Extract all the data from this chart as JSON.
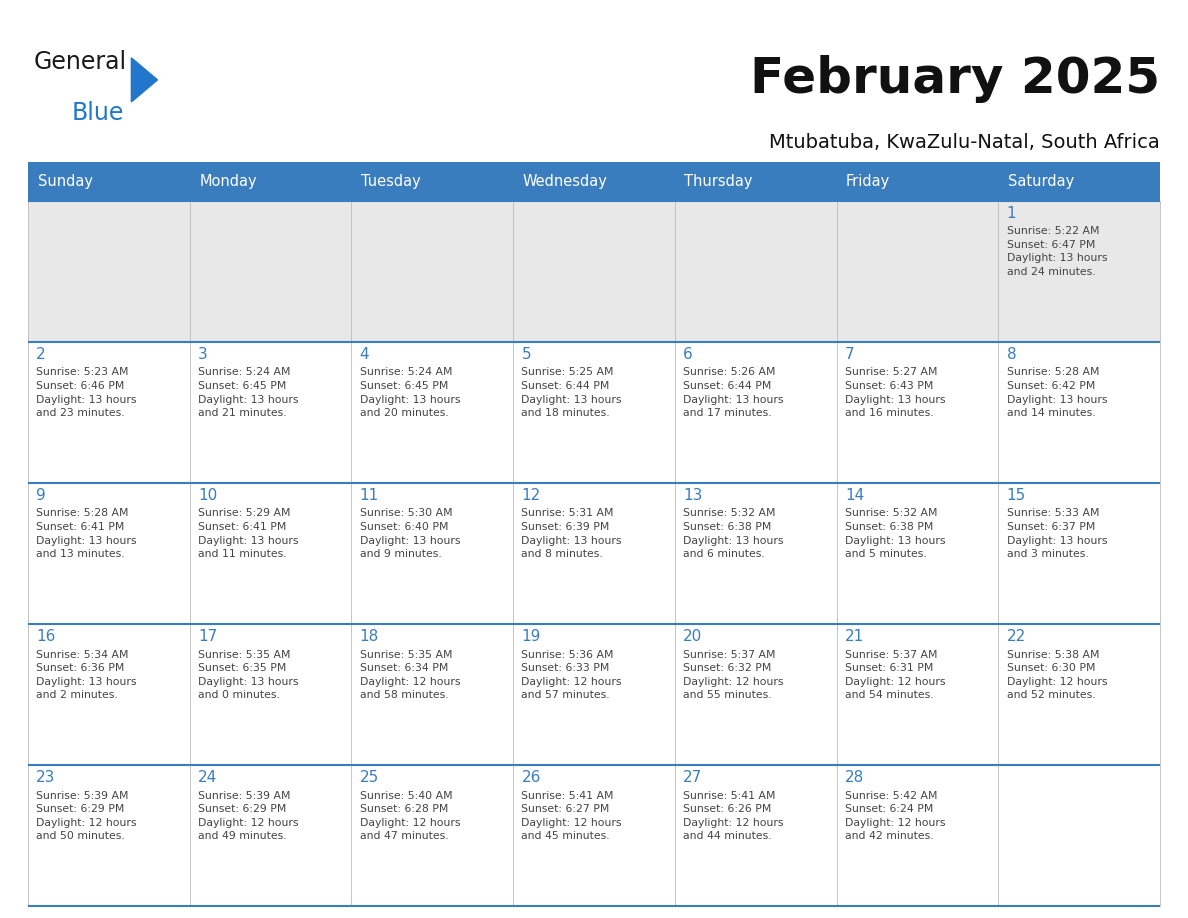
{
  "title": "February 2025",
  "subtitle": "Mtubatuba, KwaZulu-Natal, South Africa",
  "days_of_week": [
    "Sunday",
    "Monday",
    "Tuesday",
    "Wednesday",
    "Thursday",
    "Friday",
    "Saturday"
  ],
  "header_bg": "#3a7dbf",
  "header_text": "#ffffff",
  "row1_bg": "#e8e8e8",
  "cell_bg": "#ffffff",
  "border_color": "#3a7dbf",
  "sep_color": "#bbbbbb",
  "text_color": "#444444",
  "date_color": "#3a7dbf",
  "logo_general_color": "#1a1a1a",
  "logo_blue_color": "#2277cc",
  "logo_triangle_color": "#2277cc",
  "weeks": [
    [
      {
        "day": "",
        "info": ""
      },
      {
        "day": "",
        "info": ""
      },
      {
        "day": "",
        "info": ""
      },
      {
        "day": "",
        "info": ""
      },
      {
        "day": "",
        "info": ""
      },
      {
        "day": "",
        "info": ""
      },
      {
        "day": "1",
        "info": "Sunrise: 5:22 AM\nSunset: 6:47 PM\nDaylight: 13 hours\nand 24 minutes."
      }
    ],
    [
      {
        "day": "2",
        "info": "Sunrise: 5:23 AM\nSunset: 6:46 PM\nDaylight: 13 hours\nand 23 minutes."
      },
      {
        "day": "3",
        "info": "Sunrise: 5:24 AM\nSunset: 6:45 PM\nDaylight: 13 hours\nand 21 minutes."
      },
      {
        "day": "4",
        "info": "Sunrise: 5:24 AM\nSunset: 6:45 PM\nDaylight: 13 hours\nand 20 minutes."
      },
      {
        "day": "5",
        "info": "Sunrise: 5:25 AM\nSunset: 6:44 PM\nDaylight: 13 hours\nand 18 minutes."
      },
      {
        "day": "6",
        "info": "Sunrise: 5:26 AM\nSunset: 6:44 PM\nDaylight: 13 hours\nand 17 minutes."
      },
      {
        "day": "7",
        "info": "Sunrise: 5:27 AM\nSunset: 6:43 PM\nDaylight: 13 hours\nand 16 minutes."
      },
      {
        "day": "8",
        "info": "Sunrise: 5:28 AM\nSunset: 6:42 PM\nDaylight: 13 hours\nand 14 minutes."
      }
    ],
    [
      {
        "day": "9",
        "info": "Sunrise: 5:28 AM\nSunset: 6:41 PM\nDaylight: 13 hours\nand 13 minutes."
      },
      {
        "day": "10",
        "info": "Sunrise: 5:29 AM\nSunset: 6:41 PM\nDaylight: 13 hours\nand 11 minutes."
      },
      {
        "day": "11",
        "info": "Sunrise: 5:30 AM\nSunset: 6:40 PM\nDaylight: 13 hours\nand 9 minutes."
      },
      {
        "day": "12",
        "info": "Sunrise: 5:31 AM\nSunset: 6:39 PM\nDaylight: 13 hours\nand 8 minutes."
      },
      {
        "day": "13",
        "info": "Sunrise: 5:32 AM\nSunset: 6:38 PM\nDaylight: 13 hours\nand 6 minutes."
      },
      {
        "day": "14",
        "info": "Sunrise: 5:32 AM\nSunset: 6:38 PM\nDaylight: 13 hours\nand 5 minutes."
      },
      {
        "day": "15",
        "info": "Sunrise: 5:33 AM\nSunset: 6:37 PM\nDaylight: 13 hours\nand 3 minutes."
      }
    ],
    [
      {
        "day": "16",
        "info": "Sunrise: 5:34 AM\nSunset: 6:36 PM\nDaylight: 13 hours\nand 2 minutes."
      },
      {
        "day": "17",
        "info": "Sunrise: 5:35 AM\nSunset: 6:35 PM\nDaylight: 13 hours\nand 0 minutes."
      },
      {
        "day": "18",
        "info": "Sunrise: 5:35 AM\nSunset: 6:34 PM\nDaylight: 12 hours\nand 58 minutes."
      },
      {
        "day": "19",
        "info": "Sunrise: 5:36 AM\nSunset: 6:33 PM\nDaylight: 12 hours\nand 57 minutes."
      },
      {
        "day": "20",
        "info": "Sunrise: 5:37 AM\nSunset: 6:32 PM\nDaylight: 12 hours\nand 55 minutes."
      },
      {
        "day": "21",
        "info": "Sunrise: 5:37 AM\nSunset: 6:31 PM\nDaylight: 12 hours\nand 54 minutes."
      },
      {
        "day": "22",
        "info": "Sunrise: 5:38 AM\nSunset: 6:30 PM\nDaylight: 12 hours\nand 52 minutes."
      }
    ],
    [
      {
        "day": "23",
        "info": "Sunrise: 5:39 AM\nSunset: 6:29 PM\nDaylight: 12 hours\nand 50 minutes."
      },
      {
        "day": "24",
        "info": "Sunrise: 5:39 AM\nSunset: 6:29 PM\nDaylight: 12 hours\nand 49 minutes."
      },
      {
        "day": "25",
        "info": "Sunrise: 5:40 AM\nSunset: 6:28 PM\nDaylight: 12 hours\nand 47 minutes."
      },
      {
        "day": "26",
        "info": "Sunrise: 5:41 AM\nSunset: 6:27 PM\nDaylight: 12 hours\nand 45 minutes."
      },
      {
        "day": "27",
        "info": "Sunrise: 5:41 AM\nSunset: 6:26 PM\nDaylight: 12 hours\nand 44 minutes."
      },
      {
        "day": "28",
        "info": "Sunrise: 5:42 AM\nSunset: 6:24 PM\nDaylight: 12 hours\nand 42 minutes."
      },
      {
        "day": "",
        "info": ""
      }
    ]
  ],
  "figsize": [
    11.88,
    9.18
  ],
  "dpi": 100
}
